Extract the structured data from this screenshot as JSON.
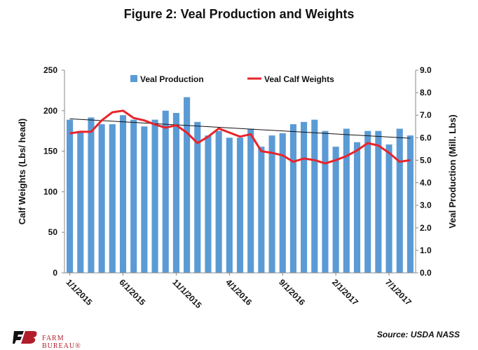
{
  "title": "Figure 2: Veal Production and Weights",
  "source": "Source: USDA NASS",
  "logo": {
    "text": "FARM BUREAU®",
    "icon": "farm-bureau-logo-icon",
    "color": "#b21e2b"
  },
  "chart_data": {
    "type": "bar",
    "x_tick_labels": [
      "1/1/2015",
      "6/1/2015",
      "11/1/2015",
      "4/1/2016",
      "9/1/2016",
      "2/1/2017",
      "7/1/2017"
    ],
    "left_ylabel": "Calf Weights (Lbs/ head)",
    "right_ylabel": "Veal Production (Mill. Lbs)",
    "left_ylim": [
      0,
      250
    ],
    "right_ylim": [
      0.0,
      9.0
    ],
    "left_ticks": [
      "0",
      "50",
      "100",
      "150",
      "200",
      "250"
    ],
    "right_ticks": [
      "0.0",
      "1.0",
      "2.0",
      "3.0",
      "4.0",
      "5.0",
      "6.0",
      "7.0",
      "8.0",
      "9.0"
    ],
    "grid": false,
    "legend_position": "top",
    "series": [
      {
        "name": "Veal Production",
        "type": "bar",
        "axis": "right",
        "color": "#5b9bd5",
        "values": [
          6.8,
          6.3,
          6.9,
          6.6,
          6.6,
          7.0,
          6.8,
          6.5,
          6.8,
          7.2,
          7.1,
          7.8,
          6.7,
          6.1,
          6.3,
          6.0,
          6.0,
          6.4,
          5.6,
          6.1,
          6.2,
          6.6,
          6.7,
          6.8,
          6.3,
          5.6,
          6.4,
          5.8,
          6.3,
          6.3,
          5.7,
          6.4,
          6.1
        ]
      },
      {
        "name": "Veal Calf Weights",
        "type": "line",
        "axis": "left",
        "color": "#e8242b",
        "values": [
          172,
          174,
          174,
          188,
          198,
          200,
          191,
          188,
          183,
          179,
          182,
          173,
          160,
          168,
          178,
          173,
          168,
          171,
          150,
          148,
          145,
          137,
          141,
          139,
          135,
          139,
          144,
          151,
          160,
          157,
          148,
          137,
          139
        ]
      },
      {
        "name": "",
        "type": "trendline",
        "axis": "left",
        "color": "#111111",
        "values": [
          190,
          166
        ]
      }
    ]
  }
}
